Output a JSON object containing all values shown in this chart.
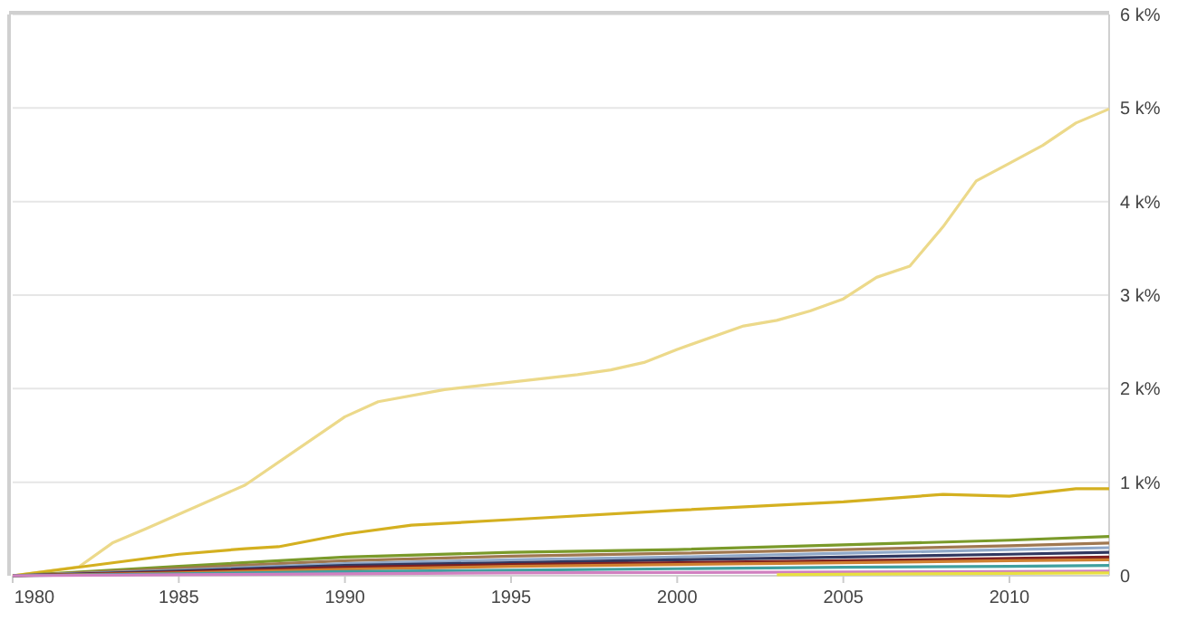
{
  "chart_data": {
    "type": "line",
    "x": [
      1980,
      1985,
      1990,
      1995,
      2000,
      2005,
      2010,
      2013
    ],
    "xlim": [
      1980,
      2013
    ],
    "xticks": [
      1980,
      1985,
      1990,
      1995,
      2000,
      2005,
      2010
    ],
    "ylim": [
      0,
      6000
    ],
    "yticks": [
      {
        "value": 0,
        "label": "0"
      },
      {
        "value": 1000,
        "label": "1 k%"
      },
      {
        "value": 2000,
        "label": "2 k%"
      },
      {
        "value": 3000,
        "label": "3 k%"
      },
      {
        "value": 4000,
        "label": "4 k%"
      },
      {
        "value": 5000,
        "label": "5 k%"
      },
      {
        "value": 6000,
        "label": "6 k%"
      }
    ],
    "grid": "y",
    "series": [
      {
        "color": "#ecd98a",
        "x": [
          1980,
          1982,
          1983,
          1984,
          1987,
          1990,
          1991,
          1993,
          1995,
          1997,
          1998,
          1999,
          2000,
          2002,
          2003,
          2004,
          2005,
          2006,
          2007,
          2008,
          2009,
          2010,
          2011,
          2012,
          2013
        ],
        "values": [
          0,
          97,
          350,
          500,
          970,
          1700,
          1860,
          1990,
          2070,
          2150,
          2200,
          2280,
          2420,
          2670,
          2730,
          2830,
          2960,
          3190,
          3310,
          3730,
          4220,
          4410,
          4600,
          4840,
          4990
        ]
      },
      {
        "color": "#d4b020",
        "x": [
          1980,
          1985,
          1987,
          1988,
          1990,
          1992,
          1995,
          2000,
          2005,
          2008,
          2010,
          2012,
          2013
        ],
        "values": [
          0,
          230,
          290,
          310,
          445,
          540,
          600,
          700,
          790,
          870,
          850,
          930,
          930
        ]
      },
      {
        "color": "#7a9a2a",
        "values": [
          0,
          100,
          200,
          250,
          280,
          330,
          380,
          420
        ]
      },
      {
        "color": "#a07850",
        "values": [
          0,
          80,
          160,
          210,
          240,
          280,
          320,
          350
        ]
      },
      {
        "color": "#8fa8c8",
        "values": [
          0,
          60,
          130,
          170,
          200,
          240,
          280,
          300
        ]
      },
      {
        "color": "#303860",
        "values": [
          0,
          50,
          110,
          140,
          170,
          200,
          230,
          250
        ]
      },
      {
        "color": "#802020",
        "values": [
          0,
          40,
          90,
          120,
          140,
          160,
          185,
          200
        ]
      },
      {
        "color": "#d08030",
        "values": [
          0,
          30,
          70,
          100,
          120,
          140,
          160,
          170
        ]
      },
      {
        "color": "#40a0a0",
        "values": [
          0,
          20,
          45,
          60,
          75,
          90,
          100,
          110
        ]
      },
      {
        "color": "#d080c0",
        "values": [
          0,
          10,
          20,
          30,
          35,
          40,
          45,
          50
        ]
      },
      {
        "color": "#e8e040",
        "x": [
          2003,
          2005,
          2010,
          2013
        ],
        "values": [
          10,
          15,
          25,
          30
        ]
      }
    ]
  }
}
